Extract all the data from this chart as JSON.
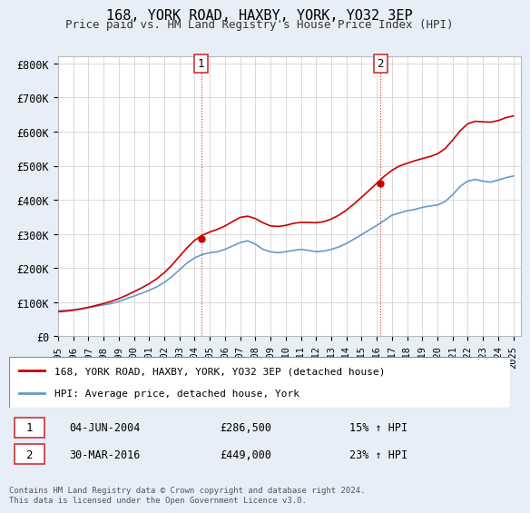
{
  "title": "168, YORK ROAD, HAXBY, YORK, YO32 3EP",
  "subtitle": "Price paid vs. HM Land Registry's House Price Index (HPI)",
  "ylabel_ticks": [
    "£0",
    "£100K",
    "£200K",
    "£300K",
    "£400K",
    "£500K",
    "£600K",
    "£700K",
    "£800K"
  ],
  "ytick_values": [
    0,
    100000,
    200000,
    300000,
    400000,
    500000,
    600000,
    700000,
    800000
  ],
  "ylim": [
    0,
    820000
  ],
  "xlim_start": 1995.0,
  "xlim_end": 2025.5,
  "legend_line1": "168, YORK ROAD, HAXBY, YORK, YO32 3EP (detached house)",
  "legend_line2": "HPI: Average price, detached house, York",
  "annotation1_label": "1",
  "annotation1_date": "04-JUN-2004",
  "annotation1_price": "£286,500",
  "annotation1_hpi": "15% ↑ HPI",
  "annotation2_label": "2",
  "annotation2_date": "30-MAR-2016",
  "annotation2_price": "£449,000",
  "annotation2_hpi": "23% ↑ HPI",
  "footer": "Contains HM Land Registry data © Crown copyright and database right 2024.\nThis data is licensed under the Open Government Licence v3.0.",
  "sale1_x": 2004.42,
  "sale1_y": 286500,
  "sale2_x": 2016.25,
  "sale2_y": 449000,
  "vline1_x": 2004.42,
  "vline2_x": 2016.25,
  "bg_color": "#e8eef8",
  "plot_bg": "#ffffff",
  "red_color": "#cc0000",
  "blue_color": "#6699cc"
}
